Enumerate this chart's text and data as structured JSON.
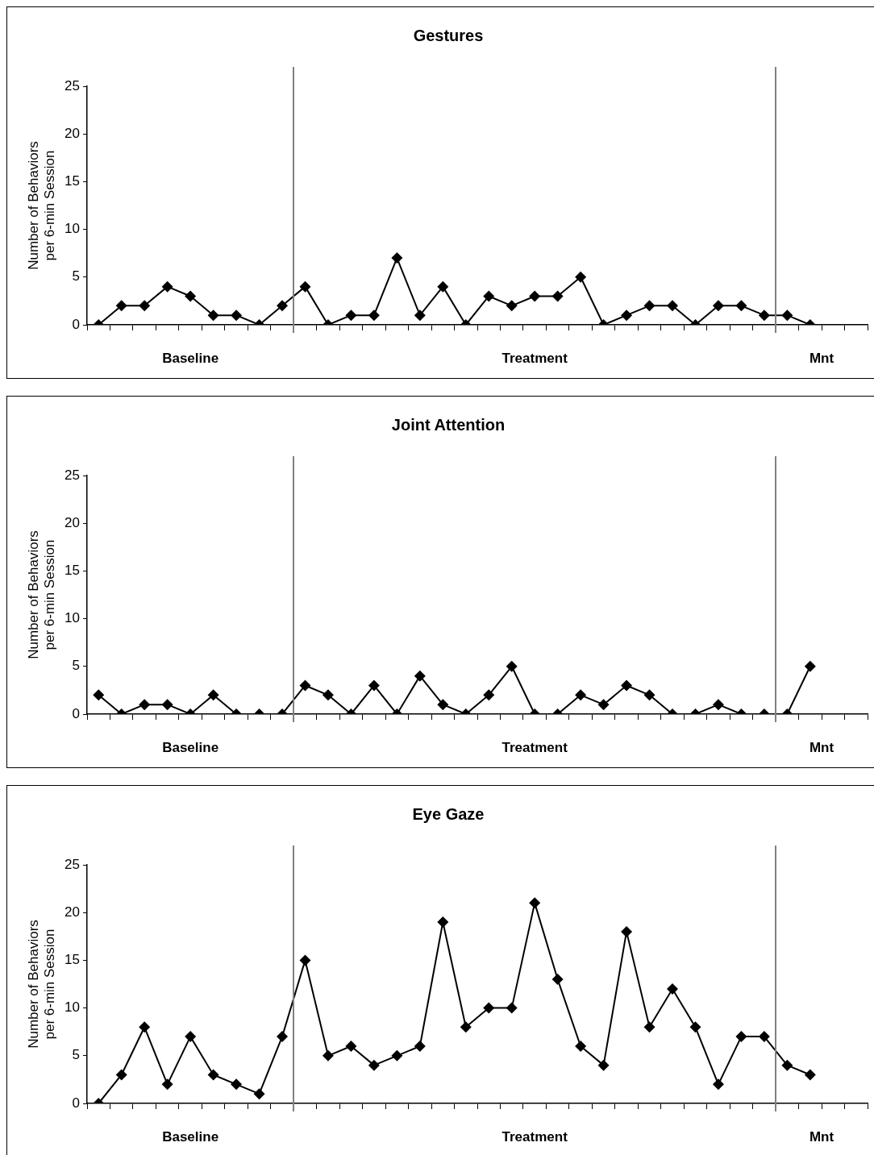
{
  "chart_data": [
    {
      "type": "line",
      "title": "Gestures",
      "ylabel": "Number of Behaviors\nper 6-min Session",
      "annotations": [
        "Baseline",
        "Treatment",
        "Mnt"
      ],
      "categories": [
        null,
        null,
        null,
        null,
        null,
        null,
        null,
        null,
        null,
        null,
        null,
        null,
        null,
        null,
        null,
        null,
        null,
        null,
        null,
        null,
        null,
        null,
        null,
        null,
        null,
        null,
        null,
        null,
        null,
        null,
        null,
        null,
        null,
        null
      ],
      "series": [
        {
          "color": "#000000",
          "values": [
            0,
            2,
            2,
            4,
            3,
            1,
            1,
            0,
            2,
            4,
            0,
            1,
            1,
            7,
            1,
            4,
            0,
            3,
            2,
            3,
            3,
            5,
            0,
            1,
            2,
            2,
            0,
            2,
            2,
            1,
            1,
            0,
            null,
            null
          ]
        }
      ],
      "ylim": [
        0,
        25
      ],
      "yticks": [
        0,
        5,
        10,
        15,
        20,
        25
      ],
      "tick_labels": "y",
      "marker": "diamond",
      "line_style": "solid"
    },
    {
      "type": "line",
      "title": "Joint Attention",
      "ylabel": "Number of Behaviors\nper 6-min Session",
      "annotations": [
        "Baseline",
        "Treatment",
        "Mnt"
      ],
      "categories": [
        null,
        null,
        null,
        null,
        null,
        null,
        null,
        null,
        null,
        null,
        null,
        null,
        null,
        null,
        null,
        null,
        null,
        null,
        null,
        null,
        null,
        null,
        null,
        null,
        null,
        null,
        null,
        null,
        null,
        null,
        null,
        null,
        null,
        null
      ],
      "series": [
        {
          "color": "#000000",
          "values": [
            2,
            0,
            1,
            1,
            0,
            2,
            0,
            0,
            0,
            3,
            2,
            0,
            3,
            0,
            4,
            1,
            0,
            2,
            5,
            0,
            0,
            2,
            1,
            3,
            2,
            0,
            0,
            1,
            0,
            0,
            0,
            5,
            null,
            null
          ]
        }
      ],
      "ylim": [
        0,
        25
      ],
      "yticks": [
        0,
        5,
        10,
        15,
        20,
        25
      ],
      "tick_labels": "y",
      "marker": "diamond",
      "line_style": "solid"
    },
    {
      "type": "line",
      "title": "Eye Gaze",
      "ylabel": "Number of Behaviors\nper 6-min Session",
      "annotations": [
        "Baseline",
        "Treatment",
        "Mnt"
      ],
      "categories": [
        null,
        null,
        null,
        null,
        null,
        null,
        null,
        null,
        null,
        null,
        null,
        null,
        null,
        null,
        null,
        null,
        null,
        null,
        null,
        null,
        null,
        null,
        null,
        null,
        null,
        null,
        null,
        null,
        null,
        null,
        null,
        null,
        null,
        null
      ],
      "series": [
        {
          "color": "#000000",
          "values": [
            0,
            3,
            8,
            2,
            7,
            3,
            2,
            1,
            7,
            15,
            5,
            6,
            4,
            5,
            6,
            19,
            8,
            10,
            10,
            21,
            13,
            6,
            4,
            18,
            8,
            12,
            8,
            2,
            7,
            7,
            4,
            3,
            null,
            null
          ]
        }
      ],
      "ylim": [
        0,
        25
      ],
      "yticks": [
        0,
        5,
        10,
        15,
        20,
        25
      ],
      "tick_labels": "y",
      "marker": "diamond",
      "line_style": "solid"
    }
  ]
}
